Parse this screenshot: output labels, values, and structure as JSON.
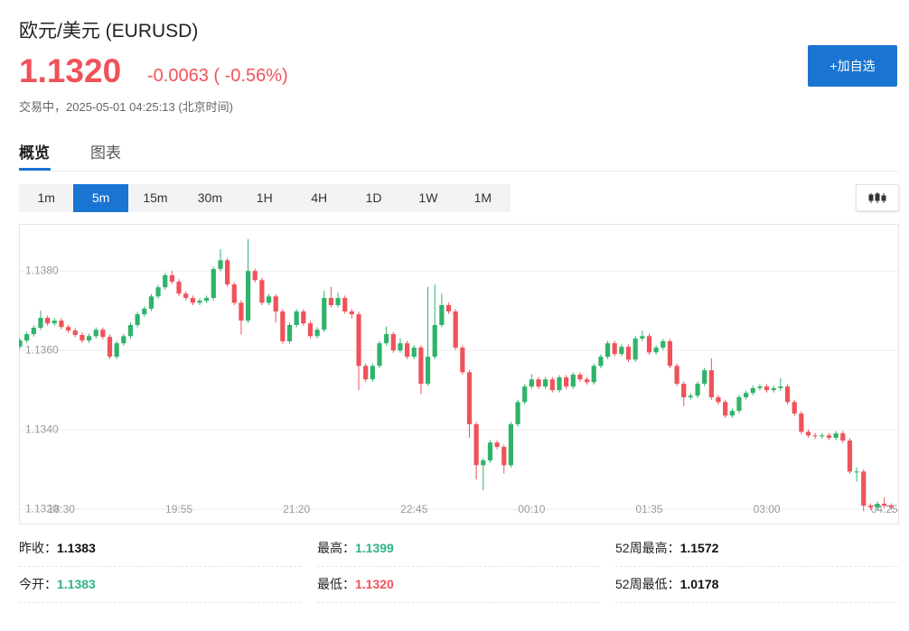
{
  "header": {
    "title": "欧元/美元 (EURUSD)",
    "price": "1.1320",
    "change": "-0.0063 ( -0.56%)",
    "status": "交易中，2025-05-01 04:25:13 (北京时间)"
  },
  "button": "+加自选",
  "tabs": [
    "概览",
    "图表"
  ],
  "active_tab": 0,
  "intervals": [
    "1m",
    "5m",
    "15m",
    "30m",
    "1H",
    "4H",
    "1D",
    "1W",
    "1M"
  ],
  "active_interval": 1,
  "chart_data": {
    "type": "candlestick",
    "up_color": "#2fb36b",
    "down_color": "#f0525a",
    "grid": true,
    "xlim": [
      0,
      127
    ],
    "ylim": [
      1.13164,
      1.13914
    ],
    "yticks": [
      {
        "value": 1.132,
        "label": "1.1320"
      },
      {
        "value": 1.134,
        "label": "1.1340"
      },
      {
        "value": 1.136,
        "label": "1.1360"
      },
      {
        "value": 1.138,
        "label": "1.1380"
      }
    ],
    "xticks": [
      {
        "value": 6,
        "label": "18:30"
      },
      {
        "value": 23,
        "label": "19:55"
      },
      {
        "value": 40,
        "label": "21:20"
      },
      {
        "value": 57,
        "label": "22:45"
      },
      {
        "value": 74,
        "label": "00:10"
      },
      {
        "value": 91,
        "label": "01:35"
      },
      {
        "value": 108,
        "label": "03:00"
      },
      {
        "value": 125,
        "label": "04:25"
      }
    ],
    "open": [
      1.1361,
      1.13625,
      1.13641,
      1.13657,
      1.13682,
      1.13668,
      1.13675,
      1.13659,
      1.1365,
      1.13639,
      1.13625,
      1.13636,
      1.13652,
      1.13634,
      1.13584,
      1.13618,
      1.13636,
      1.13664,
      1.13691,
      1.13705,
      1.13736,
      1.13759,
      1.13789,
      1.13773,
      1.13743,
      1.13732,
      1.1372,
      1.13725,
      1.13732,
      1.13805,
      1.13827,
      1.13766,
      1.1372,
      1.13675,
      1.138,
      1.13777,
      1.1372,
      1.13736,
      1.13698,
      1.13623,
      1.13664,
      1.13698,
      1.13668,
      1.13636,
      1.13652,
      1.13732,
      1.13714,
      1.13732,
      1.13698,
      1.13691,
      1.13561,
      1.13527,
      1.13561,
      1.13618,
      1.13641,
      1.136,
      1.13618,
      1.13584,
      1.13607,
      1.13516,
      1.13584,
      1.13664,
      1.13714,
      1.13698,
      1.13607,
      1.13545,
      1.13414,
      1.13311,
      1.13323,
      1.13368,
      1.13357,
      1.13311,
      1.13414,
      1.1347,
      1.13509,
      1.13527,
      1.13509,
      1.13527,
      1.135,
      1.13532,
      1.13509,
      1.13539,
      1.13527,
      1.1352,
      1.13561,
      1.13584,
      1.13618,
      1.13591,
      1.13609,
      1.13577,
      1.1363,
      1.13636,
      1.13595,
      1.13607,
      1.13623,
      1.13561,
      1.13516,
      1.13482,
      1.13486,
      1.13516,
      1.1355,
      1.13482,
      1.1347,
      1.13436,
      1.13448,
      1.13482,
      1.13493,
      1.13505,
      1.13509,
      1.135,
      1.13505,
      1.13509,
      1.1347,
      1.13441,
      1.13395,
      1.13386,
      1.13384,
      1.13386,
      1.1338,
      1.13391,
      1.13373,
      1.13295,
      1.13295,
      1.13209,
      1.13205,
      1.13214,
      1.13209
    ],
    "high": [
      1.13631,
      1.13647,
      1.13663,
      1.137,
      1.13688,
      1.13681,
      1.13681,
      1.13665,
      1.13656,
      1.13645,
      1.13642,
      1.13658,
      1.13658,
      1.1364,
      1.13624,
      1.13642,
      1.1367,
      1.13697,
      1.13711,
      1.13742,
      1.13765,
      1.13795,
      1.138,
      1.13779,
      1.13749,
      1.13738,
      1.13731,
      1.13738,
      1.13811,
      1.13855,
      1.13833,
      1.13772,
      1.13726,
      1.1388,
      1.13806,
      1.13783,
      1.13742,
      1.13742,
      1.13704,
      1.1367,
      1.13704,
      1.13704,
      1.13674,
      1.13658,
      1.1375,
      1.1376,
      1.13745,
      1.13738,
      1.13704,
      1.13697,
      1.13567,
      1.13567,
      1.13624,
      1.1366,
      1.13647,
      1.1363,
      1.13624,
      1.13613,
      1.13613,
      1.1376,
      1.13766,
      1.13743,
      1.1372,
      1.13704,
      1.13613,
      1.13551,
      1.1342,
      1.13329,
      1.13374,
      1.13374,
      1.13363,
      1.1342,
      1.13476,
      1.13515,
      1.1354,
      1.13533,
      1.13533,
      1.13533,
      1.13538,
      1.13538,
      1.13545,
      1.13545,
      1.13533,
      1.13567,
      1.1359,
      1.13624,
      1.13624,
      1.13615,
      1.13615,
      1.13636,
      1.1365,
      1.13642,
      1.13613,
      1.13629,
      1.13629,
      1.13567,
      1.13522,
      1.13492,
      1.13522,
      1.13556,
      1.1358,
      1.13488,
      1.13476,
      1.13454,
      1.13488,
      1.13499,
      1.13511,
      1.13515,
      1.13515,
      1.13511,
      1.1353,
      1.13515,
      1.13476,
      1.13447,
      1.13401,
      1.13392,
      1.13392,
      1.13392,
      1.13397,
      1.13397,
      1.13379,
      1.13305,
      1.13301,
      1.13215,
      1.1322,
      1.1323,
      1.13215
    ],
    "low": [
      1.13604,
      1.13619,
      1.13635,
      1.13651,
      1.13662,
      1.13662,
      1.13653,
      1.13644,
      1.13633,
      1.13619,
      1.13619,
      1.1363,
      1.13628,
      1.13578,
      1.13578,
      1.13612,
      1.1363,
      1.13658,
      1.13685,
      1.13699,
      1.1373,
      1.13753,
      1.13767,
      1.13737,
      1.13726,
      1.13714,
      1.13714,
      1.13719,
      1.13726,
      1.13799,
      1.1376,
      1.13714,
      1.1364,
      1.13669,
      1.13771,
      1.13714,
      1.13714,
      1.1367,
      1.13617,
      1.13617,
      1.13658,
      1.13662,
      1.1363,
      1.1363,
      1.13646,
      1.13708,
      1.13708,
      1.13692,
      1.1368,
      1.135,
      1.13521,
      1.13521,
      1.13555,
      1.13612,
      1.13594,
      1.13594,
      1.13578,
      1.13578,
      1.1349,
      1.1351,
      1.13578,
      1.13658,
      1.13692,
      1.13601,
      1.13539,
      1.1338,
      1.13275,
      1.13248,
      1.13317,
      1.13351,
      1.1329,
      1.13305,
      1.13408,
      1.13464,
      1.13503,
      1.13503,
      1.13503,
      1.13494,
      1.13494,
      1.13503,
      1.13503,
      1.13521,
      1.13514,
      1.13514,
      1.13555,
      1.13578,
      1.13585,
      1.13585,
      1.13571,
      1.13571,
      1.13624,
      1.13589,
      1.13589,
      1.13601,
      1.13555,
      1.1351,
      1.1346,
      1.13476,
      1.1348,
      1.1351,
      1.13476,
      1.13464,
      1.1343,
      1.1343,
      1.13442,
      1.13476,
      1.13487,
      1.13499,
      1.13494,
      1.13494,
      1.13499,
      1.13464,
      1.13435,
      1.13389,
      1.1338,
      1.13378,
      1.13378,
      1.13374,
      1.13374,
      1.13367,
      1.13289,
      1.1327,
      1.13195,
      1.13199,
      1.13199,
      1.13203,
      1.13199
    ],
    "close": [
      1.13625,
      1.13641,
      1.13657,
      1.13682,
      1.13668,
      1.13675,
      1.13659,
      1.1365,
      1.13639,
      1.13625,
      1.13636,
      1.13652,
      1.13634,
      1.13584,
      1.13618,
      1.13636,
      1.13664,
      1.13691,
      1.13705,
      1.13736,
      1.13759,
      1.13789,
      1.13773,
      1.13743,
      1.13732,
      1.1372,
      1.13725,
      1.13732,
      1.13805,
      1.13827,
      1.13766,
      1.1372,
      1.13675,
      1.138,
      1.13777,
      1.1372,
      1.13736,
      1.13698,
      1.13623,
      1.13664,
      1.13698,
      1.13668,
      1.13636,
      1.13652,
      1.13732,
      1.13714,
      1.13732,
      1.13698,
      1.13691,
      1.13561,
      1.13527,
      1.13561,
      1.13618,
      1.13641,
      1.136,
      1.13618,
      1.13584,
      1.13607,
      1.13516,
      1.13584,
      1.13664,
      1.13714,
      1.13698,
      1.13607,
      1.13545,
      1.13414,
      1.13311,
      1.13323,
      1.13368,
      1.13357,
      1.13311,
      1.13414,
      1.1347,
      1.13509,
      1.13527,
      1.13509,
      1.13527,
      1.135,
      1.13532,
      1.13509,
      1.13539,
      1.13527,
      1.1352,
      1.13561,
      1.13584,
      1.13618,
      1.13591,
      1.13609,
      1.13577,
      1.1363,
      1.13636,
      1.13595,
      1.13607,
      1.13623,
      1.13561,
      1.13516,
      1.13482,
      1.13486,
      1.13516,
      1.1355,
      1.13482,
      1.1347,
      1.13436,
      1.13448,
      1.13482,
      1.13493,
      1.13505,
      1.13509,
      1.135,
      1.13505,
      1.13509,
      1.1347,
      1.13441,
      1.13395,
      1.13386,
      1.13384,
      1.13386,
      1.1338,
      1.13391,
      1.13373,
      1.13295,
      1.13295,
      1.13209,
      1.13205,
      1.13214,
      1.13209,
      1.13205
    ]
  },
  "stats": [
    {
      "label": "昨收：",
      "value": "1.1383",
      "color": "#111111"
    },
    {
      "label": "最高：",
      "value": "1.1399",
      "color": "#2fb38a"
    },
    {
      "label": "52周最高：",
      "value": "1.1572",
      "color": "#111111"
    },
    {
      "label": "今开：",
      "value": "1.1383",
      "color": "#2fb38a"
    },
    {
      "label": "最低：",
      "value": "1.1320",
      "color": "#f0525a"
    },
    {
      "label": "52周最低：",
      "value": "1.0178",
      "color": "#111111"
    }
  ]
}
